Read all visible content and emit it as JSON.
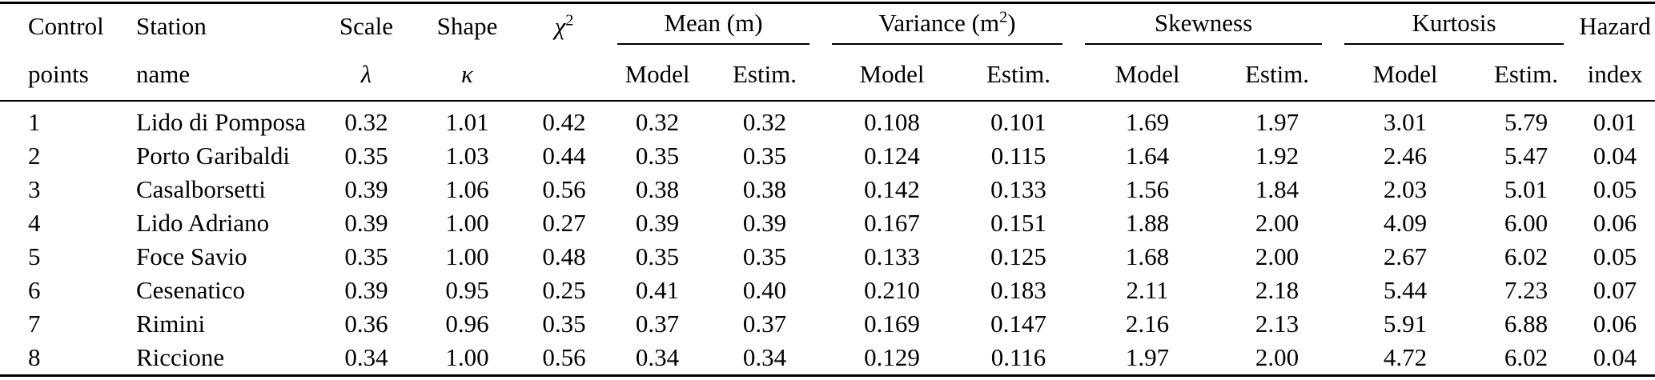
{
  "colors": {
    "background": "#ffffff",
    "text": "#000000",
    "rule": "#000000"
  },
  "table": {
    "header": {
      "col_control": {
        "line1": "Control",
        "line2": "points"
      },
      "col_station": {
        "line1": "Station",
        "line2": "name"
      },
      "col_scale": {
        "line1": "Scale",
        "line2": "λ"
      },
      "col_shape": {
        "line1": "Shape",
        "line2": "κ"
      },
      "col_chi": {
        "base": "χ",
        "sup": "2"
      },
      "group_mean": {
        "label": "Mean (m)",
        "sub1": "Model",
        "sub2": "Estim."
      },
      "group_variance": {
        "pre": "Variance (m",
        "sup": "2",
        "post": ")",
        "sub1": "Model",
        "sub2": "Estim."
      },
      "group_skewness": {
        "label": "Skewness",
        "sub1": "Model",
        "sub2": "Estim."
      },
      "group_kurtosis": {
        "label": "Kurtosis",
        "sub1": "Model",
        "sub2": "Estim."
      },
      "col_hazard": {
        "line1": "Hazard",
        "line2": "index"
      }
    },
    "field_order": [
      "control_point",
      "station",
      "scale",
      "shape",
      "chi2",
      "mean_model",
      "mean_estim",
      "var_model",
      "var_estim",
      "skew_model",
      "skew_estim",
      "kurt_model",
      "kurt_estim",
      "hazard"
    ],
    "rows": [
      {
        "control_point": "1",
        "station": "Lido di Pomposa",
        "scale": "0.32",
        "shape": "1.01",
        "chi2": "0.42",
        "mean_model": "0.32",
        "mean_estim": "0.32",
        "var_model": "0.108",
        "var_estim": "0.101",
        "skew_model": "1.69",
        "skew_estim": "1.97",
        "kurt_model": "3.01",
        "kurt_estim": "5.79",
        "hazard": "0.01"
      },
      {
        "control_point": "2",
        "station": "Porto Garibaldi",
        "scale": "0.35",
        "shape": "1.03",
        "chi2": "0.44",
        "mean_model": "0.35",
        "mean_estim": "0.35",
        "var_model": "0.124",
        "var_estim": "0.115",
        "skew_model": "1.64",
        "skew_estim": "1.92",
        "kurt_model": "2.46",
        "kurt_estim": "5.47",
        "hazard": "0.04"
      },
      {
        "control_point": "3",
        "station": "Casalborsetti",
        "scale": "0.39",
        "shape": "1.06",
        "chi2": "0.56",
        "mean_model": "0.38",
        "mean_estim": "0.38",
        "var_model": "0.142",
        "var_estim": "0.133",
        "skew_model": "1.56",
        "skew_estim": "1.84",
        "kurt_model": "2.03",
        "kurt_estim": "5.01",
        "hazard": "0.05"
      },
      {
        "control_point": "4",
        "station": "Lido Adriano",
        "scale": "0.39",
        "shape": "1.00",
        "chi2": "0.27",
        "mean_model": "0.39",
        "mean_estim": "0.39",
        "var_model": "0.167",
        "var_estim": "0.151",
        "skew_model": "1.88",
        "skew_estim": "2.00",
        "kurt_model": "4.09",
        "kurt_estim": "6.00",
        "hazard": "0.06"
      },
      {
        "control_point": "5",
        "station": "Foce Savio",
        "scale": "0.35",
        "shape": "1.00",
        "chi2": "0.48",
        "mean_model": "0.35",
        "mean_estim": "0.35",
        "var_model": "0.133",
        "var_estim": "0.125",
        "skew_model": "1.68",
        "skew_estim": "2.00",
        "kurt_model": "2.67",
        "kurt_estim": "6.02",
        "hazard": "0.05"
      },
      {
        "control_point": "6",
        "station": "Cesenatico",
        "scale": "0.39",
        "shape": "0.95",
        "chi2": "0.25",
        "mean_model": "0.41",
        "mean_estim": "0.40",
        "var_model": "0.210",
        "var_estim": "0.183",
        "skew_model": "2.11",
        "skew_estim": "2.18",
        "kurt_model": "5.44",
        "kurt_estim": "7.23",
        "hazard": "0.07"
      },
      {
        "control_point": "7",
        "station": "Rimini",
        "scale": "0.36",
        "shape": "0.96",
        "chi2": "0.35",
        "mean_model": "0.37",
        "mean_estim": "0.37",
        "var_model": "0.169",
        "var_estim": "0.147",
        "skew_model": "2.16",
        "skew_estim": "2.13",
        "kurt_model": "5.91",
        "kurt_estim": "6.88",
        "hazard": "0.06"
      },
      {
        "control_point": "8",
        "station": "Riccione",
        "scale": "0.34",
        "shape": "1.00",
        "chi2": "0.56",
        "mean_model": "0.34",
        "mean_estim": "0.34",
        "var_model": "0.129",
        "var_estim": "0.116",
        "skew_model": "1.97",
        "skew_estim": "2.00",
        "kurt_model": "4.72",
        "kurt_estim": "6.02",
        "hazard": "0.04"
      }
    ]
  }
}
